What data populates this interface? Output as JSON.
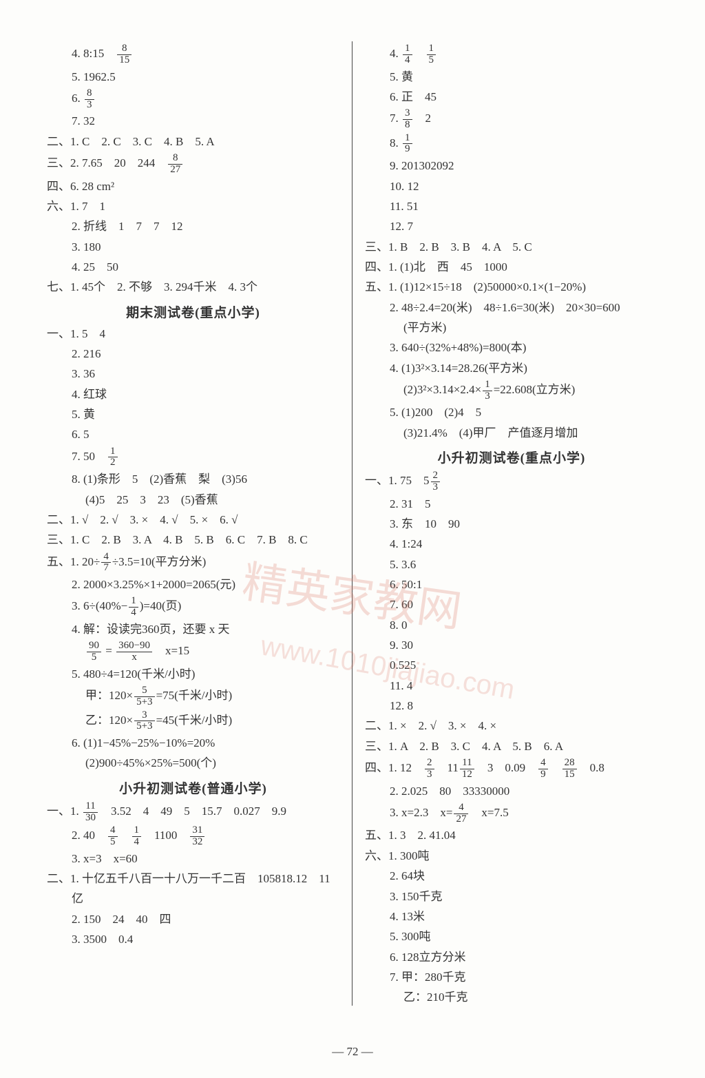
{
  "pageNumber": "— 72 —",
  "watermark_main": "精英家教网",
  "watermark_url": "www.1010jiajiao.com",
  "left": [
    {
      "cls": "indent1",
      "html": "4. 8:15　<f>8|15</f>"
    },
    {
      "cls": "indent1",
      "t": "5. 1962.5"
    },
    {
      "cls": "indent1",
      "html": "6. <f>8|3</f>"
    },
    {
      "cls": "indent1",
      "t": "7. 32"
    },
    {
      "cls": "",
      "t": "二、1. C　2. C　3. C　4. B　5. A"
    },
    {
      "cls": "",
      "html": "三、2. 7.65　20　244　<f>8|27</f>"
    },
    {
      "cls": "",
      "t": "四、6. 28 cm²"
    },
    {
      "cls": "",
      "t": "六、1. 7　1"
    },
    {
      "cls": "indent1",
      "t": "2. 折线　1　7　7　12"
    },
    {
      "cls": "indent1",
      "t": "3. 180"
    },
    {
      "cls": "indent1",
      "t": "4. 25　50"
    },
    {
      "cls": "",
      "t": "七、1. 45个　2. 不够　3. 294千米　4. 3个"
    },
    {
      "cls": "heading",
      "t": "期末测试卷(重点小学)"
    },
    {
      "cls": "",
      "t": "一、1. 5　4"
    },
    {
      "cls": "indent1",
      "t": "2. 216"
    },
    {
      "cls": "indent1",
      "t": "3. 36"
    },
    {
      "cls": "indent1",
      "t": "4. 红球"
    },
    {
      "cls": "indent1",
      "t": "5. 黄"
    },
    {
      "cls": "indent1",
      "t": "6. 5"
    },
    {
      "cls": "indent1",
      "html": "7. 50　<f>1|2</f>"
    },
    {
      "cls": "indent1",
      "t": "8. (1)条形　5　(2)香蕉　梨　(3)56"
    },
    {
      "cls": "indent2",
      "t": "(4)5　25　3　23　(5)香蕉"
    },
    {
      "cls": "",
      "t": "二、1. √　2. √　3. ×　4. √　5. ×　6. √"
    },
    {
      "cls": "",
      "t": "三、1. C　2. B　3. A　4. B　5. B　6. C　7. B　8. C"
    },
    {
      "cls": "",
      "html": "五、1. 20÷<f>4|7</f>÷3.5=10(平方分米)"
    },
    {
      "cls": "indent1",
      "t": "2. 2000×3.25%×1+2000=2065(元)"
    },
    {
      "cls": "indent1",
      "html": "3. 6÷(40%−<f>1|4</f>)=40(页)"
    },
    {
      "cls": "indent1",
      "t": "4. 解：设读完360页，还要 x 天"
    },
    {
      "cls": "indent2",
      "html": "<f>90|5</f> = <f>360−90|x</f>　x=15"
    },
    {
      "cls": "indent1",
      "t": "5. 480÷4=120(千米/小时)"
    },
    {
      "cls": "indent2",
      "html": "甲：120×<f>5|5+3</f>=75(千米/小时)"
    },
    {
      "cls": "indent2",
      "html": "乙：120×<f>3|5+3</f>=45(千米/小时)"
    },
    {
      "cls": "indent1",
      "t": "6. (1)1−45%−25%−10%=20%"
    },
    {
      "cls": "indent2",
      "t": "(2)900÷45%×25%=500(个)"
    },
    {
      "cls": "heading",
      "t": "小升初测试卷(普通小学)"
    },
    {
      "cls": "",
      "html": "一、1. <f>11|30</f>　3.52　4　49　5　15.7　0.027　9.9"
    },
    {
      "cls": "indent1",
      "html": "2. 40　<f>4|5</f>　<f>1|4</f>　1100　<f>31|32</f>"
    },
    {
      "cls": "indent1",
      "t": "3. x=3　x=60"
    },
    {
      "cls": "",
      "t": "二、1. 十亿五千八百一十八万一千二百　105818.12　11"
    },
    {
      "cls": "indent1",
      "t": "亿"
    },
    {
      "cls": "indent1",
      "t": "2. 150　24　40　四"
    },
    {
      "cls": "indent1",
      "t": "3. 3500　0.4"
    }
  ],
  "right": [
    {
      "cls": "indent1",
      "html": "4. <f>1|4</f>　<f>1|5</f>"
    },
    {
      "cls": "indent1",
      "t": "5. 黄"
    },
    {
      "cls": "indent1",
      "t": "6. 正　45"
    },
    {
      "cls": "indent1",
      "html": "7. <f>3|8</f>　2"
    },
    {
      "cls": "indent1",
      "html": "8. <f>1|9</f>"
    },
    {
      "cls": "indent1",
      "t": "9. 201302092"
    },
    {
      "cls": "indent1",
      "t": "10. 12"
    },
    {
      "cls": "indent1",
      "t": "11. 51"
    },
    {
      "cls": "indent1",
      "t": "12. 7"
    },
    {
      "cls": "",
      "t": "三、1. B　2. B　3. B　4. A　5. C"
    },
    {
      "cls": "",
      "t": "四、1. (1)北　西　45　1000"
    },
    {
      "cls": "",
      "t": "五、1. (1)12×15÷18　(2)50000×0.1×(1−20%)"
    },
    {
      "cls": "indent1",
      "t": "2. 48÷2.4=20(米)　48÷1.6=30(米)　20×30=600"
    },
    {
      "cls": "indent2",
      "t": "(平方米)"
    },
    {
      "cls": "indent1",
      "t": "3. 640÷(32%+48%)=800(本)"
    },
    {
      "cls": "indent1",
      "t": "4. (1)3²×3.14=28.26(平方米)"
    },
    {
      "cls": "indent2",
      "html": "(2)3²×3.14×2.4×<f>1|3</f>=22.608(立方米)"
    },
    {
      "cls": "indent1",
      "t": "5. (1)200　(2)4　5"
    },
    {
      "cls": "indent2",
      "t": "(3)21.4%　(4)甲厂　产值逐月增加"
    },
    {
      "cls": "heading",
      "t": "小升初测试卷(重点小学)"
    },
    {
      "cls": "",
      "html": "一、1. 75　5<f>2|3</f>"
    },
    {
      "cls": "indent1",
      "t": "2. 31　5"
    },
    {
      "cls": "indent1",
      "t": "3. 东　10　90"
    },
    {
      "cls": "indent1",
      "t": "4. 1:24"
    },
    {
      "cls": "indent1",
      "t": "5. 3.6"
    },
    {
      "cls": "indent1",
      "t": "6. 50:1"
    },
    {
      "cls": "indent1",
      "t": "7. 60"
    },
    {
      "cls": "indent1",
      "t": "8. 0"
    },
    {
      "cls": "indent1",
      "t": "9. 30"
    },
    {
      "cls": "indent1",
      "t": "0.525"
    },
    {
      "cls": "indent1",
      "t": "11. 4"
    },
    {
      "cls": "indent1",
      "t": "12. 8"
    },
    {
      "cls": "",
      "t": "二、1. ×　2. √　3. ×　4. ×"
    },
    {
      "cls": "",
      "t": "三、1. A　2. B　3. C　4. A　5. B　6. A"
    },
    {
      "cls": "",
      "html": "四、1. 12　<f>2|3</f>　11<f>11|12</f>　3　0.09　<f>4|9</f>　<f>28|15</f>　0.8"
    },
    {
      "cls": "indent1",
      "t": "2. 2.025　80　33330000"
    },
    {
      "cls": "indent1",
      "html": "3. x=2.3　x=<f>4|27</f>　x=7.5"
    },
    {
      "cls": "",
      "t": "五、1. 3　2. 41.04"
    },
    {
      "cls": "",
      "t": "六、1. 300吨"
    },
    {
      "cls": "indent1",
      "t": "2. 64块"
    },
    {
      "cls": "indent1",
      "t": "3. 150千克"
    },
    {
      "cls": "indent1",
      "t": "4. 13米"
    },
    {
      "cls": "indent1",
      "t": "5. 300吨"
    },
    {
      "cls": "indent1",
      "t": "6. 128立方分米"
    },
    {
      "cls": "indent1",
      "t": "7. 甲：280千克"
    },
    {
      "cls": "indent2",
      "t": "乙：210千克"
    }
  ]
}
